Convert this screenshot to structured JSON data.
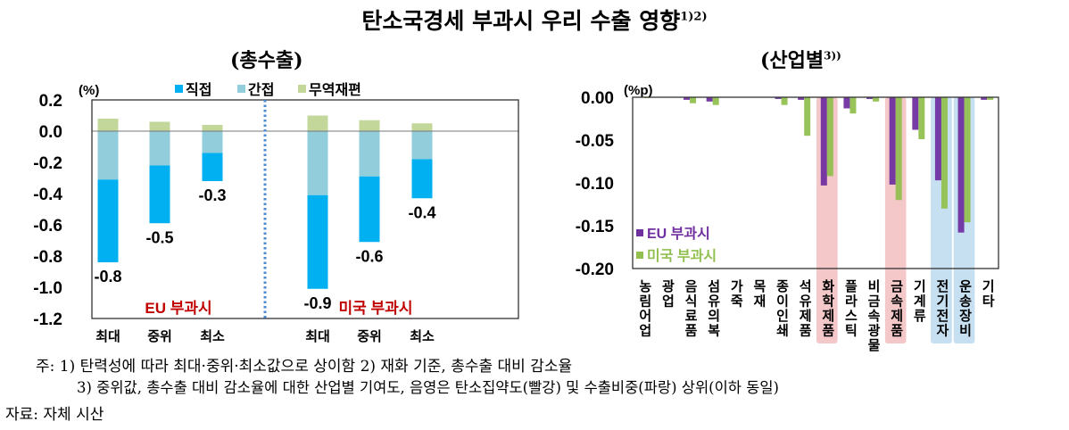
{
  "title": "탄소국경세 부과시 우리 수출 영향",
  "title_sup": "1)2)",
  "subtitle_left": "(총수출)",
  "subtitle_right": "(산업별",
  "subtitle_right_sup": "3))",
  "chart_data": [
    {
      "type": "bar",
      "stacked": true,
      "unit": "(%)",
      "ylim": [
        -1.2,
        0.2
      ],
      "yticks": [
        "0.2",
        "0.0",
        "-0.2",
        "-0.4",
        "-0.6",
        "-0.8",
        "-1.0",
        "-1.2"
      ],
      "groups": [
        "EU 부과시",
        "미국 부과시"
      ],
      "categories": [
        "최대",
        "중위",
        "최소",
        "최대",
        "중위",
        "최소"
      ],
      "series": [
        {
          "name": "직접",
          "color": "#00B0F0",
          "values": [
            -0.53,
            -0.37,
            -0.18,
            -0.6,
            -0.42,
            -0.25
          ]
        },
        {
          "name": "간접",
          "color": "#92CDDC",
          "values": [
            -0.31,
            -0.22,
            -0.14,
            -0.41,
            -0.29,
            -0.18
          ]
        },
        {
          "name": "무역재편",
          "color": "#C4D79B",
          "values": [
            0.08,
            0.06,
            0.04,
            0.1,
            0.07,
            0.05
          ]
        }
      ],
      "totals": [
        "-0.8",
        "-0.5",
        "-0.3",
        "-0.9",
        "-0.6",
        "-0.4"
      ],
      "group_label_color": "#C00000"
    },
    {
      "type": "bar",
      "unit": "(%p)",
      "ylim": [
        -0.2,
        0.0
      ],
      "yticks": [
        "0.00",
        "-0.05",
        "-0.10",
        "-0.15",
        "-0.20"
      ],
      "categories": [
        "농림어업",
        "광업",
        "음식료품",
        "섬유의복",
        "가죽",
        "목재",
        "종이인쇄",
        "석유제품",
        "화학제품",
        "플라스틱",
        "비금속광물",
        "금속제품",
        "기계류",
        "전기전자",
        "운송장비",
        "기타"
      ],
      "series": [
        {
          "name": "EU 부과시",
          "color": "#7030A0",
          "values": [
            -0.0005,
            0,
            -0.003,
            -0.005,
            0,
            0,
            -0.002,
            -0.003,
            -0.103,
            -0.013,
            -0.002,
            -0.102,
            -0.038,
            -0.097,
            -0.158,
            -0.003
          ]
        },
        {
          "name": "미국 부과시",
          "color": "#92C050",
          "values": [
            -0.001,
            0,
            -0.007,
            -0.009,
            0,
            0,
            -0.009,
            -0.045,
            -0.092,
            -0.019,
            -0.005,
            -0.12,
            -0.049,
            -0.13,
            -0.146,
            -0.003
          ]
        }
      ],
      "highlight_red": [
        "화학제품",
        "금속제품"
      ],
      "highlight_blue": [
        "전기전자",
        "운송장비"
      ],
      "highlight_colors": {
        "red": "#F4C7C8",
        "blue": "#C6DFF1"
      }
    }
  ],
  "notes": {
    "line1": "주: 1) 탄력성에 따라 최대·중위·최소값으로 상이함  2) 재화 기준, 총수출 대비 감소율",
    "line2": "3) 중위값, 총수출 대비 감소율에 대한 산업별 기여도, 음영은 탄소집약도(빨강) 및 수출비중(파랑) 상위(이하 동일)",
    "source": "자료: 자체 시산"
  }
}
